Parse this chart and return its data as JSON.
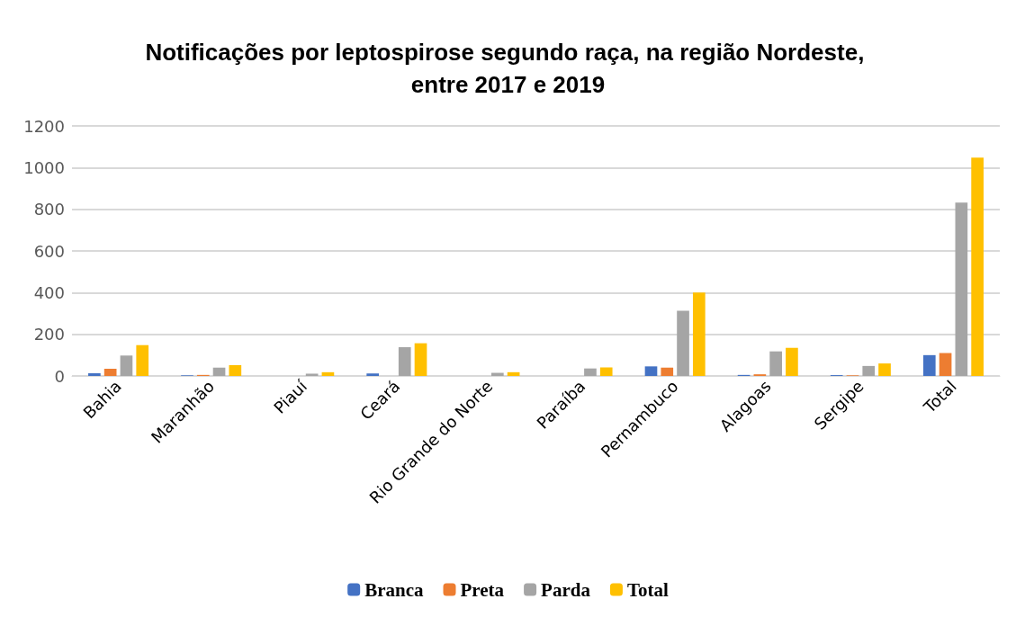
{
  "chart_data": {
    "type": "bar",
    "title": "Notificações por leptospirose segundo raça, na região Nordeste, entre 2017 e 2019",
    "categories": [
      "Bahia",
      "Maranhão",
      "Piauí",
      "Ceará",
      "Rio Grande do Norte",
      "Paraíba",
      "Pernambuco",
      "Alagoas",
      "Sergipe",
      "Total"
    ],
    "series": [
      {
        "name": "Branca",
        "color": "#4472c4",
        "values": [
          13,
          3,
          0,
          12,
          0,
          0,
          46,
          5,
          4,
          100
        ]
      },
      {
        "name": "Preta",
        "color": "#ed7d31",
        "values": [
          35,
          5,
          0,
          0,
          0,
          0,
          40,
          8,
          3,
          110
        ]
      },
      {
        "name": "Parda",
        "color": "#a5a5a5",
        "values": [
          98,
          40,
          11,
          138,
          15,
          36,
          313,
          118,
          48,
          832
        ]
      },
      {
        "name": "Total",
        "color": "#ffc000",
        "values": [
          148,
          52,
          18,
          157,
          18,
          41,
          400,
          135,
          60,
          1048
        ]
      }
    ],
    "ylim": [
      0,
      1200
    ],
    "yticks": [
      0,
      200,
      400,
      600,
      800,
      1000,
      1200
    ],
    "grid": "y",
    "legend": "bottom"
  }
}
